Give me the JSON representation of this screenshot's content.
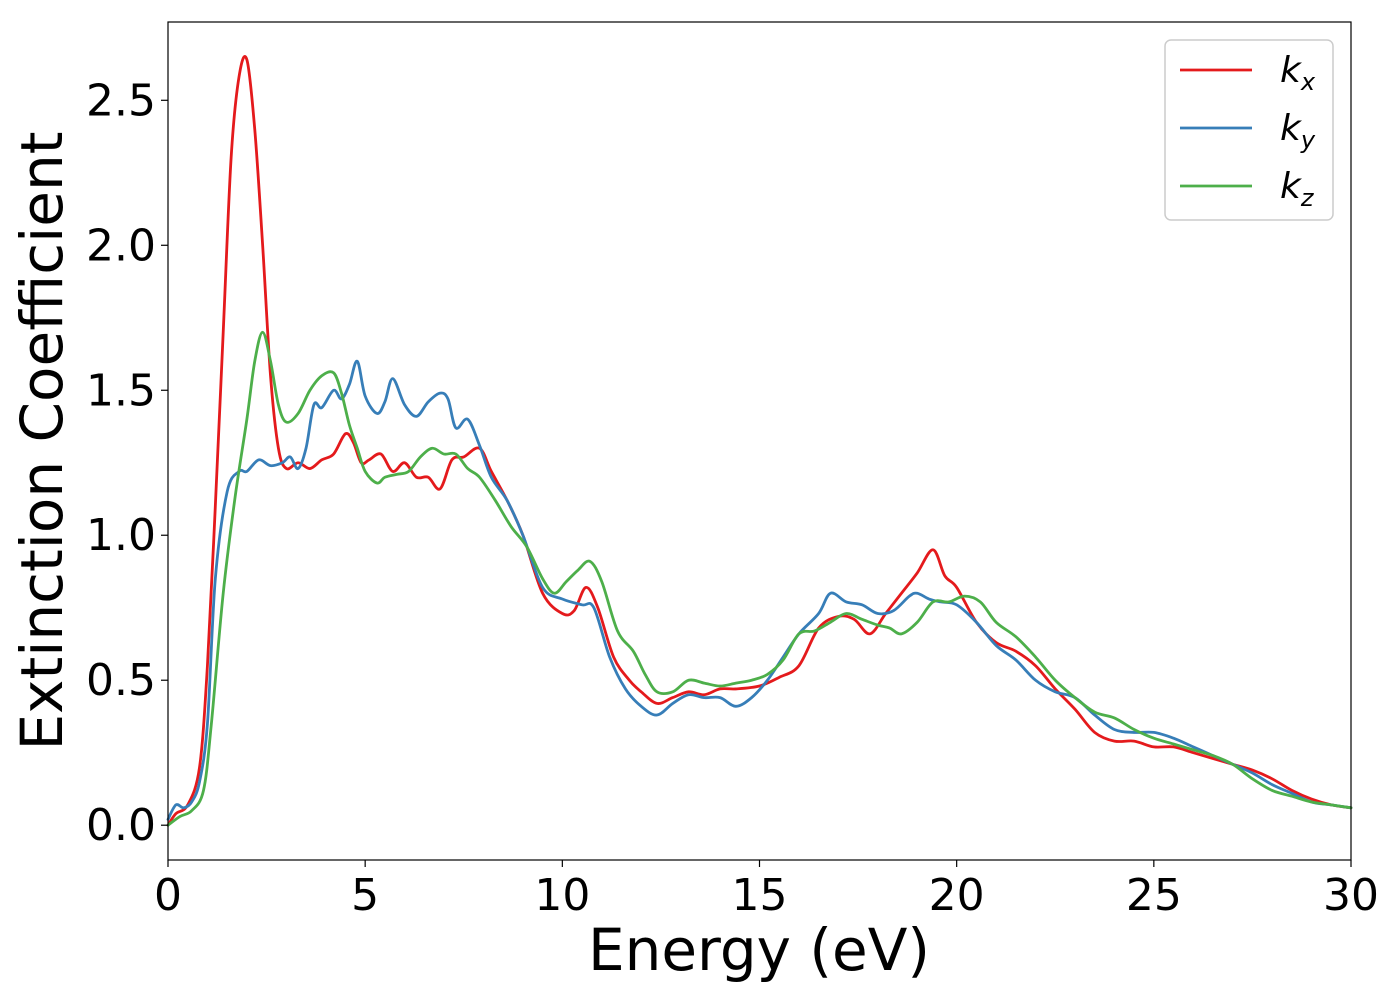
{
  "chart_data": {
    "type": "line",
    "xlabel": "Energy (eV)",
    "ylabel": "Extinction Coefficient",
    "xlim": [
      0,
      30
    ],
    "ylim": [
      -0.12,
      2.77
    ],
    "xticks": [
      "0",
      "5",
      "10",
      "15",
      "20",
      "25",
      "30"
    ],
    "yticks": [
      "0.0",
      "0.5",
      "1.0",
      "1.5",
      "2.0",
      "2.5"
    ],
    "grid": false,
    "legend_position": "top-right",
    "series": [
      {
        "name": "k_x",
        "label_main": "k",
        "label_sub": "x",
        "color": "#e41a1c",
        "x": [
          0,
          0.2,
          0.5,
          0.8,
          1.0,
          1.2,
          1.4,
          1.6,
          1.8,
          2.0,
          2.2,
          2.4,
          2.6,
          2.8,
          3.0,
          3.3,
          3.6,
          3.9,
          4.2,
          4.5,
          4.7,
          4.9,
          5.1,
          5.4,
          5.7,
          6.0,
          6.3,
          6.6,
          6.9,
          7.2,
          7.5,
          7.9,
          8.2,
          8.6,
          9.0,
          9.5,
          10.0,
          10.3,
          10.6,
          10.9,
          11.3,
          11.7,
          12.0,
          12.4,
          12.8,
          13.2,
          13.6,
          14.0,
          14.4,
          15.0,
          15.5,
          16.0,
          16.5,
          17.0,
          17.4,
          17.8,
          18.2,
          18.6,
          19.0,
          19.4,
          19.7,
          20.0,
          20.5,
          21.0,
          21.5,
          22.0,
          22.5,
          23.0,
          23.5,
          24.0,
          24.5,
          25.0,
          25.5,
          26.0,
          26.5,
          27.0,
          27.5,
          28.0,
          28.5,
          29.0,
          29.5,
          30.0
        ],
        "y": [
          0.0,
          0.04,
          0.07,
          0.2,
          0.55,
          1.1,
          1.7,
          2.3,
          2.58,
          2.64,
          2.4,
          2.0,
          1.55,
          1.3,
          1.23,
          1.25,
          1.23,
          1.26,
          1.28,
          1.35,
          1.32,
          1.25,
          1.26,
          1.28,
          1.22,
          1.25,
          1.2,
          1.2,
          1.16,
          1.26,
          1.27,
          1.3,
          1.22,
          1.12,
          1.0,
          0.8,
          0.73,
          0.74,
          0.82,
          0.75,
          0.58,
          0.5,
          0.46,
          0.42,
          0.44,
          0.46,
          0.45,
          0.47,
          0.47,
          0.48,
          0.51,
          0.55,
          0.68,
          0.72,
          0.71,
          0.66,
          0.73,
          0.8,
          0.87,
          0.95,
          0.86,
          0.82,
          0.7,
          0.63,
          0.6,
          0.55,
          0.47,
          0.4,
          0.32,
          0.29,
          0.29,
          0.27,
          0.27,
          0.25,
          0.23,
          0.21,
          0.19,
          0.16,
          0.12,
          0.09,
          0.07,
          0.06
        ]
      },
      {
        "name": "k_y",
        "label_main": "k",
        "label_sub": "y",
        "color": "#377eb8",
        "x": [
          0,
          0.2,
          0.4,
          0.6,
          0.8,
          1.0,
          1.2,
          1.5,
          1.8,
          2.0,
          2.3,
          2.6,
          2.9,
          3.1,
          3.3,
          3.5,
          3.7,
          3.9,
          4.2,
          4.4,
          4.6,
          4.8,
          5.0,
          5.3,
          5.5,
          5.7,
          6.0,
          6.3,
          6.6,
          6.9,
          7.1,
          7.3,
          7.6,
          7.9,
          8.2,
          8.6,
          9.0,
          9.5,
          10.0,
          10.5,
          10.8,
          11.2,
          11.6,
          12.0,
          12.4,
          12.8,
          13.2,
          13.6,
          14.0,
          14.4,
          14.8,
          15.2,
          15.6,
          16.0,
          16.5,
          16.8,
          17.2,
          17.6,
          18.0,
          18.4,
          18.8,
          19.0,
          19.3,
          19.6,
          20.0,
          20.5,
          21.0,
          21.5,
          22.0,
          22.5,
          23.0,
          23.5,
          24.0,
          24.5,
          25.0,
          25.5,
          26.0,
          26.5,
          27.0,
          27.5,
          28.0,
          28.5,
          29.0,
          29.5,
          30.0
        ],
        "y": [
          0.02,
          0.07,
          0.06,
          0.08,
          0.15,
          0.35,
          0.85,
          1.15,
          1.22,
          1.22,
          1.26,
          1.24,
          1.25,
          1.27,
          1.23,
          1.3,
          1.45,
          1.44,
          1.5,
          1.47,
          1.52,
          1.6,
          1.48,
          1.42,
          1.46,
          1.54,
          1.45,
          1.41,
          1.46,
          1.49,
          1.47,
          1.37,
          1.4,
          1.31,
          1.2,
          1.12,
          1.0,
          0.82,
          0.78,
          0.76,
          0.75,
          0.58,
          0.47,
          0.41,
          0.38,
          0.42,
          0.45,
          0.44,
          0.44,
          0.41,
          0.44,
          0.5,
          0.58,
          0.66,
          0.73,
          0.8,
          0.77,
          0.76,
          0.73,
          0.74,
          0.79,
          0.8,
          0.78,
          0.77,
          0.76,
          0.7,
          0.62,
          0.57,
          0.5,
          0.46,
          0.44,
          0.38,
          0.33,
          0.32,
          0.32,
          0.3,
          0.27,
          0.24,
          0.21,
          0.18,
          0.14,
          0.11,
          0.08,
          0.07,
          0.06
        ]
      },
      {
        "name": "k_z",
        "label_main": "k",
        "label_sub": "z",
        "color": "#4daf4a",
        "x": [
          0,
          0.3,
          0.6,
          0.9,
          1.1,
          1.4,
          1.7,
          2.0,
          2.2,
          2.4,
          2.6,
          2.8,
          3.0,
          3.3,
          3.6,
          3.9,
          4.2,
          4.4,
          4.6,
          4.8,
          5.0,
          5.3,
          5.5,
          5.8,
          6.1,
          6.4,
          6.7,
          7.0,
          7.3,
          7.6,
          7.9,
          8.3,
          8.7,
          9.1,
          9.5,
          9.8,
          10.1,
          10.4,
          10.7,
          11.0,
          11.4,
          11.8,
          12.1,
          12.4,
          12.8,
          13.2,
          13.6,
          14.0,
          14.4,
          14.8,
          15.2,
          15.6,
          16.0,
          16.4,
          16.8,
          17.2,
          17.6,
          18.0,
          18.3,
          18.6,
          19.0,
          19.4,
          19.8,
          20.2,
          20.6,
          21.0,
          21.5,
          22.0,
          22.5,
          23.0,
          23.5,
          24.0,
          24.5,
          25.0,
          25.5,
          26.0,
          26.5,
          27.0,
          27.5,
          28.0,
          28.5,
          29.0,
          29.5,
          30.0
        ],
        "y": [
          0.0,
          0.03,
          0.05,
          0.12,
          0.35,
          0.8,
          1.13,
          1.4,
          1.6,
          1.7,
          1.6,
          1.45,
          1.39,
          1.42,
          1.5,
          1.55,
          1.56,
          1.49,
          1.38,
          1.3,
          1.22,
          1.18,
          1.2,
          1.21,
          1.22,
          1.27,
          1.3,
          1.28,
          1.28,
          1.23,
          1.2,
          1.12,
          1.03,
          0.96,
          0.85,
          0.8,
          0.84,
          0.88,
          0.91,
          0.84,
          0.67,
          0.6,
          0.52,
          0.46,
          0.46,
          0.5,
          0.49,
          0.48,
          0.49,
          0.5,
          0.52,
          0.57,
          0.66,
          0.67,
          0.7,
          0.73,
          0.71,
          0.69,
          0.68,
          0.66,
          0.7,
          0.77,
          0.77,
          0.79,
          0.77,
          0.7,
          0.65,
          0.58,
          0.5,
          0.44,
          0.39,
          0.37,
          0.33,
          0.3,
          0.28,
          0.26,
          0.24,
          0.21,
          0.16,
          0.12,
          0.1,
          0.08,
          0.07,
          0.06
        ]
      }
    ]
  }
}
